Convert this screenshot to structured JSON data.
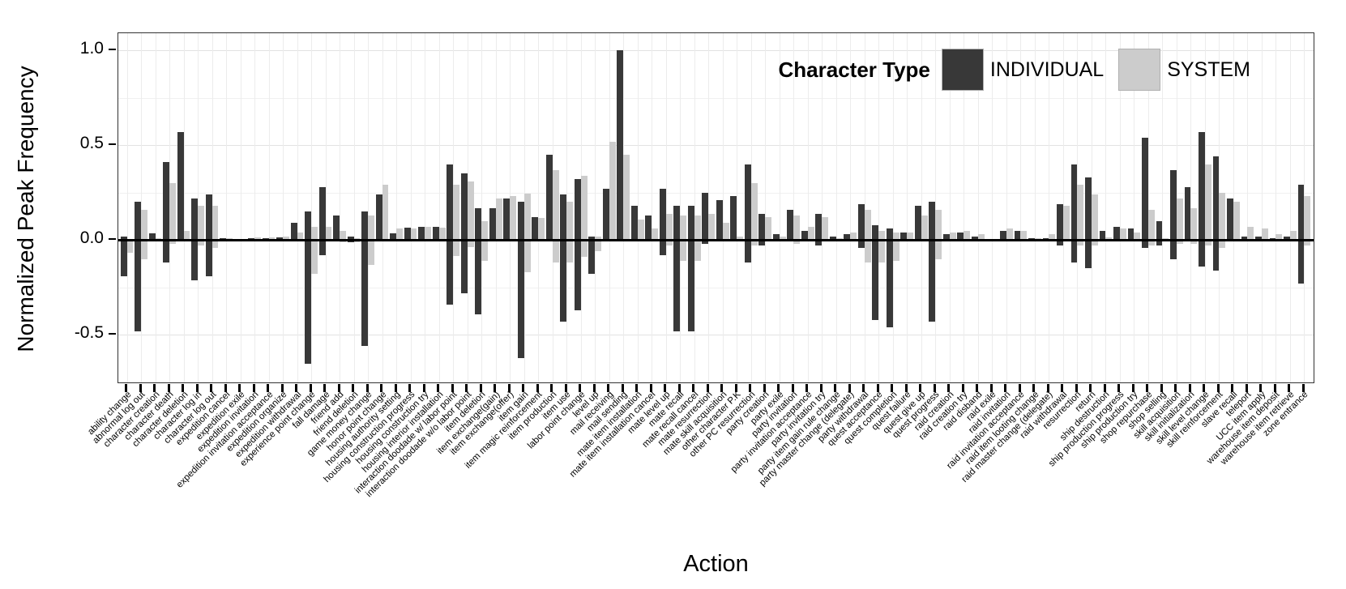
{
  "chart_data": {
    "type": "bar",
    "title": "",
    "xlabel": "Action",
    "ylabel": "Normalized Peak Frequency",
    "ylim": [
      -0.75,
      1.09
    ],
    "yticks": [
      1.0,
      0.5,
      0.0,
      -0.5
    ],
    "ytick_labels": [
      "1.0",
      "0.5",
      "0.0",
      "-0.5"
    ],
    "minor_gridlines": [
      0.75,
      0.25,
      -0.25
    ],
    "grid": true,
    "legend": {
      "title": "Character Type",
      "position": "top-right-inside",
      "entries": [
        {
          "label": "INDIVIDUAL",
          "color": "#383838"
        },
        {
          "label": "SYSTEM",
          "color": "#cccccc"
        }
      ]
    },
    "note": "Each bar spans from its negative extent to its positive extent of normalized peak frequency; values are [high, low] pairs per category.",
    "categories": [
      "ability change",
      "abnormal log out",
      "character creation",
      "character death",
      "character deletion",
      "character log in",
      "character log out",
      "expedition cancel",
      "expedition exile",
      "expedition invitation",
      "expedition invitation acceptance",
      "expedition organize",
      "expedition withdrawal",
      "experience point change",
      "fall damage",
      "friend add",
      "friend deletion",
      "game money change",
      "honor point change",
      "housing authority setting",
      "housing construction progress",
      "housing construction try",
      "housing interior installation",
      "interaction doodade w/ labor point",
      "interaction doodade w/o labor point",
      "item deletion",
      "item exchange(gain)",
      "item exchange(offer)",
      "item gain",
      "item magic reinforcement",
      "item production",
      "item use",
      "labor point change",
      "level up",
      "mail receiving",
      "mail sending",
      "mate item installation",
      "mate item installation cancel",
      "mate level up",
      "mate recall",
      "mate recall cancel",
      "mate resurrection",
      "mate skill acquisition",
      "other character P.K",
      "other PC resurrection",
      "party creation",
      "party exile",
      "party invitation",
      "party invitation acceptance",
      "party invitation try",
      "party item gain rule change",
      "party master change (delegate)",
      "party withdrawal",
      "quest acceptance",
      "quest completion",
      "quest failure",
      "quest give up",
      "quest progress",
      "raid creation",
      "raid creation try",
      "raid disband",
      "raid exile",
      "raid invitation",
      "raid invitation acceptance",
      "raid item looting change",
      "raid master change (delegate)",
      "raid withdrawal",
      "resurrection",
      "return",
      "ship destruction",
      "ship production progress",
      "ship production try",
      "shop repurchase",
      "shop selling",
      "skill acquisition",
      "skill initialization",
      "skill level change",
      "skill reinforcement",
      "slave recall",
      "teleport",
      "UCC item apply",
      "warehouse item deposit",
      "warehouse item retrieve",
      "zone entrance"
    ],
    "series": [
      {
        "name": "INDIVIDUAL",
        "color": "#383838",
        "ranges": [
          [
            0.02,
            -0.19
          ],
          [
            0.2,
            -0.48
          ],
          [
            0.035,
            0
          ],
          [
            0.41,
            -0.12
          ],
          [
            0.57,
            0
          ],
          [
            0.22,
            -0.21
          ],
          [
            0.24,
            -0.19
          ],
          [
            0.01,
            0
          ],
          [
            0.005,
            0
          ],
          [
            0.01,
            0
          ],
          [
            0.01,
            0
          ],
          [
            0.015,
            0
          ],
          [
            0.09,
            0
          ],
          [
            0.15,
            -0.65
          ],
          [
            0.28,
            -0.08
          ],
          [
            0.13,
            0
          ],
          [
            0.02,
            -0.01
          ],
          [
            0.15,
            -0.56
          ],
          [
            0.24,
            0
          ],
          [
            0.035,
            0
          ],
          [
            0.065,
            0
          ],
          [
            0.07,
            0
          ],
          [
            0.07,
            0
          ],
          [
            0.4,
            -0.34
          ],
          [
            0.35,
            -0.28
          ],
          [
            0.17,
            -0.39
          ],
          [
            0.17,
            0
          ],
          [
            0.22,
            0
          ],
          [
            0.2,
            -0.62
          ],
          [
            0.12,
            0
          ],
          [
            0.45,
            0
          ],
          [
            0.24,
            -0.43
          ],
          [
            0.32,
            -0.37
          ],
          [
            0.02,
            -0.18
          ],
          [
            0.27,
            0
          ],
          [
            1.0,
            0
          ],
          [
            0.18,
            0
          ],
          [
            0.13,
            0
          ],
          [
            0.27,
            -0.08
          ],
          [
            0.18,
            -0.48
          ],
          [
            0.18,
            -0.48
          ],
          [
            0.25,
            -0.02
          ],
          [
            0.21,
            0
          ],
          [
            0.23,
            0
          ],
          [
            0.4,
            -0.12
          ],
          [
            0.14,
            -0.03
          ],
          [
            0.03,
            0
          ],
          [
            0.16,
            0
          ],
          [
            0.05,
            0
          ],
          [
            0.14,
            -0.03
          ],
          [
            0.02,
            0
          ],
          [
            0.03,
            0
          ],
          [
            0.19,
            -0.04
          ],
          [
            0.08,
            -0.42
          ],
          [
            0.06,
            -0.46
          ],
          [
            0.04,
            0
          ],
          [
            0.18,
            0
          ],
          [
            0.2,
            -0.43
          ],
          [
            0.03,
            0
          ],
          [
            0.04,
            0
          ],
          [
            0.02,
            0
          ],
          [
            0.005,
            0
          ],
          [
            0.05,
            0
          ],
          [
            0.05,
            0
          ],
          [
            0.01,
            0
          ],
          [
            0.01,
            0
          ],
          [
            0.19,
            -0.03
          ],
          [
            0.4,
            -0.12
          ],
          [
            0.33,
            -0.15
          ],
          [
            0.05,
            0
          ],
          [
            0.07,
            0
          ],
          [
            0.06,
            0
          ],
          [
            0.54,
            -0.04
          ],
          [
            0.1,
            -0.03
          ],
          [
            0.37,
            -0.1
          ],
          [
            0.28,
            0
          ],
          [
            0.57,
            -0.14
          ],
          [
            0.44,
            -0.16
          ],
          [
            0.22,
            0
          ],
          [
            0.02,
            0
          ],
          [
            0.02,
            0
          ],
          [
            0.01,
            0
          ],
          [
            0.02,
            0
          ],
          [
            0.29,
            -0.23
          ]
        ]
      },
      {
        "name": "SYSTEM",
        "color": "#cccccc",
        "ranges": [
          [
            0,
            -0.065
          ],
          [
            0.16,
            -0.1
          ],
          [
            0.01,
            0
          ],
          [
            0.3,
            -0.02
          ],
          [
            0.05,
            0
          ],
          [
            0.18,
            -0.03
          ],
          [
            0.18,
            -0.04
          ],
          [
            0.01,
            0
          ],
          [
            0.005,
            0
          ],
          [
            0.015,
            0
          ],
          [
            0.015,
            0
          ],
          [
            0.02,
            0
          ],
          [
            0.04,
            0
          ],
          [
            0.07,
            -0.18
          ],
          [
            0.07,
            0
          ],
          [
            0.05,
            -0.01
          ],
          [
            0.01,
            -0.01
          ],
          [
            0.13,
            -0.13
          ],
          [
            0.29,
            0
          ],
          [
            0.06,
            0
          ],
          [
            0.06,
            0
          ],
          [
            0.07,
            0
          ],
          [
            0.065,
            0
          ],
          [
            0.29,
            -0.085
          ],
          [
            0.31,
            -0.035
          ],
          [
            0.1,
            -0.11
          ],
          [
            0.22,
            0
          ],
          [
            0.23,
            0
          ],
          [
            0.245,
            -0.17
          ],
          [
            0.115,
            0
          ],
          [
            0.37,
            -0.12
          ],
          [
            0.2,
            -0.12
          ],
          [
            0.34,
            -0.09
          ],
          [
            0.02,
            -0.06
          ],
          [
            0.52,
            0
          ],
          [
            0.45,
            0
          ],
          [
            0.11,
            0
          ],
          [
            0.06,
            0
          ],
          [
            0.14,
            -0.03
          ],
          [
            0.13,
            -0.11
          ],
          [
            0.13,
            -0.11
          ],
          [
            0.14,
            0
          ],
          [
            0.09,
            0
          ],
          [
            0.02,
            0
          ],
          [
            0.3,
            -0.03
          ],
          [
            0.12,
            0
          ],
          [
            0.02,
            0
          ],
          [
            0.13,
            -0.02
          ],
          [
            0.07,
            0
          ],
          [
            0.12,
            0
          ],
          [
            0.01,
            0
          ],
          [
            0.04,
            0
          ],
          [
            0.16,
            -0.12
          ],
          [
            0.05,
            -0.12
          ],
          [
            0.04,
            -0.11
          ],
          [
            0.04,
            0
          ],
          [
            0.13,
            0
          ],
          [
            0.16,
            -0.1
          ],
          [
            0.04,
            0
          ],
          [
            0.05,
            0
          ],
          [
            0.03,
            0
          ],
          [
            0.005,
            0
          ],
          [
            0.06,
            0
          ],
          [
            0.05,
            0
          ],
          [
            0.01,
            0
          ],
          [
            0.03,
            0
          ],
          [
            0.18,
            0
          ],
          [
            0.29,
            -0.03
          ],
          [
            0.24,
            -0.03
          ],
          [
            0.015,
            0
          ],
          [
            0.06,
            0
          ],
          [
            0.04,
            0
          ],
          [
            0.16,
            -0.03
          ],
          [
            0.01,
            0
          ],
          [
            0.22,
            -0.02
          ],
          [
            0.17,
            -0.02
          ],
          [
            0.4,
            -0.03
          ],
          [
            0.25,
            -0.04
          ],
          [
            0.2,
            0
          ],
          [
            0.07,
            0
          ],
          [
            0.06,
            0
          ],
          [
            0.03,
            0
          ],
          [
            0.05,
            0
          ],
          [
            0.23,
            -0.03
          ]
        ]
      }
    ]
  },
  "colors": {
    "background": "#ffffff",
    "panel_border": "#333333",
    "grid_major": "#e2e2e2",
    "grid_minor": "#f0f0f0",
    "grid_vertical": "#ececec",
    "zero_line": "#000000",
    "individual": "#383838",
    "system": "#cccccc"
  }
}
